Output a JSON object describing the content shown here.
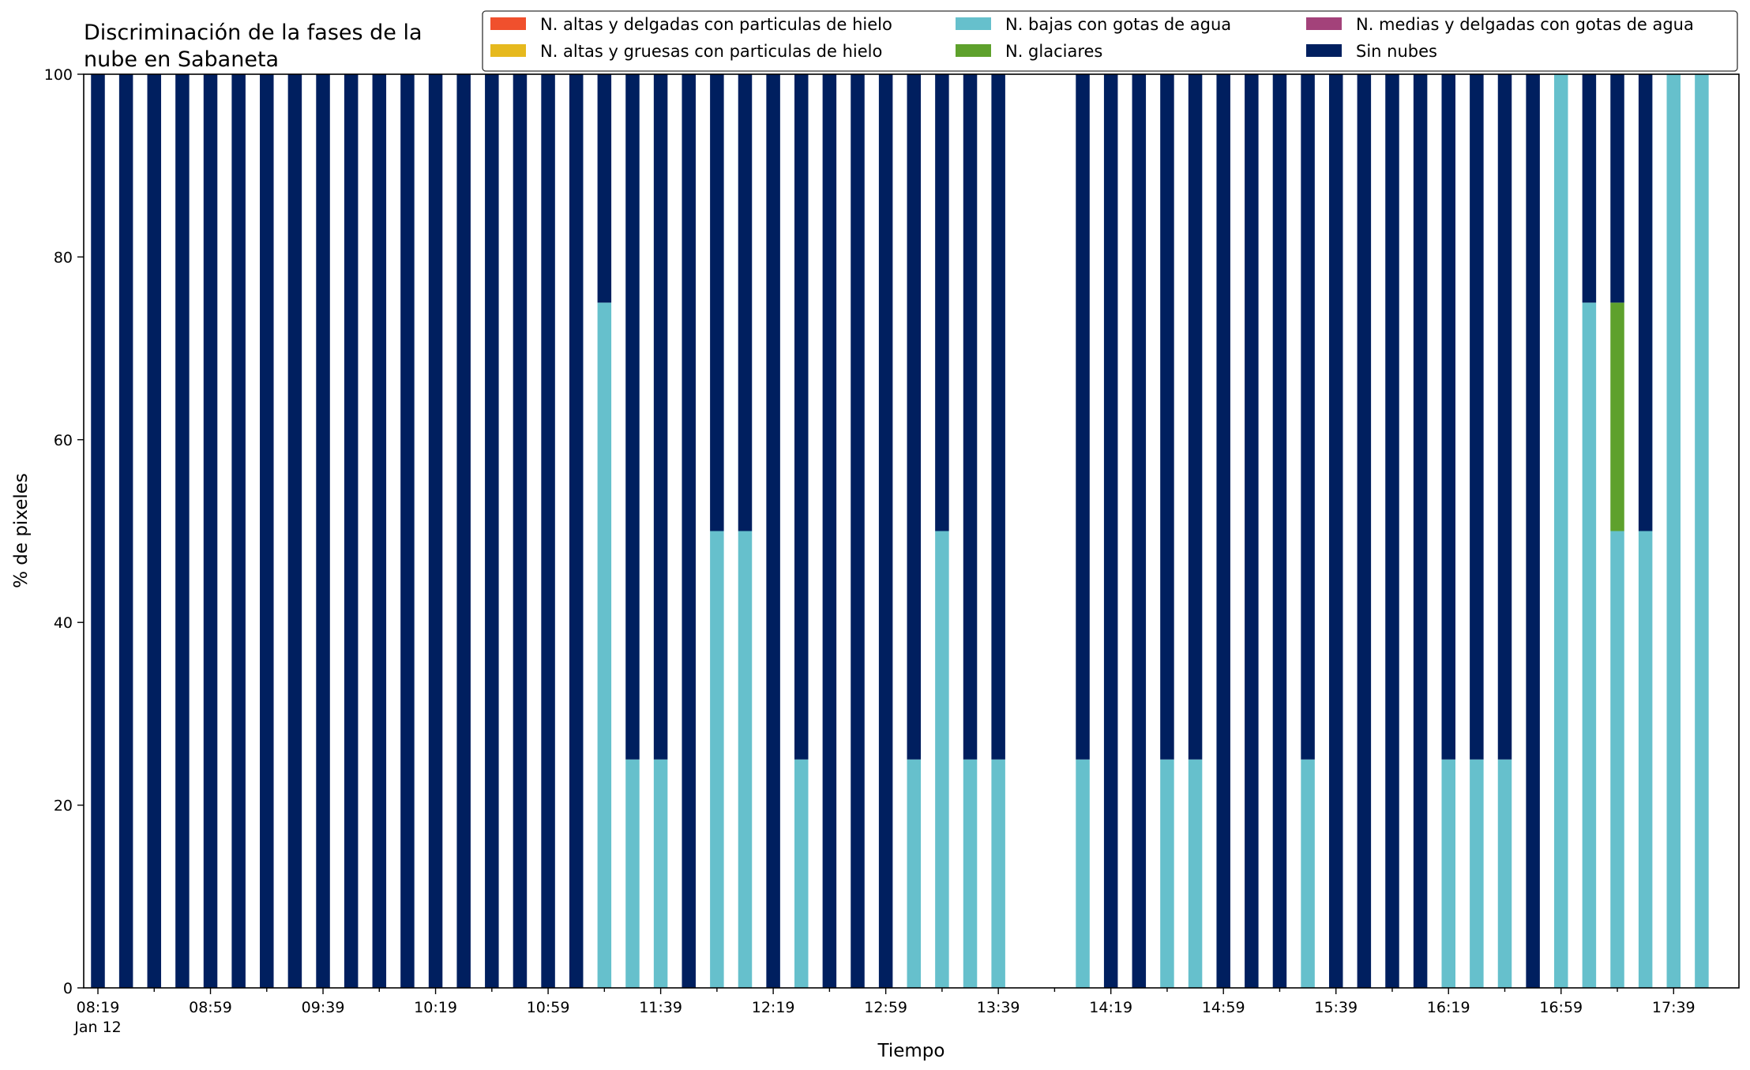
{
  "colors": {
    "hielo_delgadas": "#f0502d",
    "hielo_gruesas": "#e6b91e",
    "agua_bajas": "#66c0cc",
    "glaciares": "#5ea12c",
    "medias_agua": "#a3427a",
    "sin_nubes": "#001f5f"
  },
  "chart_data": {
    "type": "bar",
    "stacked": true,
    "title": "Discriminación de la fases de la\nnube en Sabaneta",
    "xlabel": "Tiempo",
    "ylabel": "% de pixeles",
    "ylim": [
      0,
      100
    ],
    "yticks": [
      0,
      20,
      40,
      60,
      80,
      100
    ],
    "grid": false,
    "legend_position": "top-right",
    "x_tick_labels": [
      {
        "time": "08:19",
        "date": "Jan 12"
      },
      {
        "time": "08:59"
      },
      {
        "time": "09:39"
      },
      {
        "time": "10:19"
      },
      {
        "time": "10:59"
      },
      {
        "time": "11:39"
      },
      {
        "time": "12:19"
      },
      {
        "time": "12:59"
      },
      {
        "time": "13:39"
      },
      {
        "time": "14:19"
      },
      {
        "time": "14:59"
      },
      {
        "time": "15:39"
      },
      {
        "time": "16:19"
      },
      {
        "time": "16:59"
      },
      {
        "time": "17:39"
      }
    ],
    "categories": [
      "08:19",
      "08:29",
      "08:39",
      "08:49",
      "08:59",
      "09:09",
      "09:19",
      "09:29",
      "09:39",
      "09:49",
      "09:59",
      "10:09",
      "10:19",
      "10:29",
      "10:39",
      "10:49",
      "10:59",
      "11:09",
      "11:19",
      "11:29",
      "11:39",
      "11:49",
      "11:59",
      "12:09",
      "12:19",
      "12:29",
      "12:39",
      "12:49",
      "12:59",
      "13:09",
      "13:19",
      "13:29",
      "13:39",
      "13:49",
      "13:59",
      "14:09",
      "14:19",
      "14:29",
      "14:39",
      "14:49",
      "14:59",
      "15:09",
      "15:19",
      "15:29",
      "15:39",
      "15:49",
      "15:59",
      "16:09",
      "16:19",
      "16:29",
      "16:39",
      "16:49",
      "16:59",
      "17:09",
      "17:19",
      "17:29",
      "17:39",
      "17:49"
    ],
    "series": [
      {
        "name": "N. altas y delgadas con particulas de hielo",
        "color_key": "hielo_delgadas",
        "values": [
          0,
          0,
          0,
          0,
          0,
          0,
          0,
          0,
          0,
          0,
          0,
          0,
          0,
          0,
          0,
          0,
          0,
          0,
          0,
          0,
          0,
          0,
          0,
          0,
          0,
          0,
          0,
          0,
          0,
          0,
          0,
          0,
          0,
          0,
          0,
          0,
          0,
          0,
          0,
          0,
          0,
          0,
          0,
          0,
          0,
          0,
          0,
          0,
          0,
          0,
          0,
          0,
          0,
          0,
          0,
          0,
          0,
          0
        ]
      },
      {
        "name": "N. altas y gruesas con particulas de hielo",
        "color_key": "hielo_gruesas",
        "values": [
          0,
          0,
          0,
          0,
          0,
          0,
          0,
          0,
          0,
          0,
          0,
          0,
          0,
          0,
          0,
          0,
          0,
          0,
          0,
          0,
          0,
          0,
          0,
          0,
          0,
          0,
          0,
          0,
          0,
          0,
          0,
          0,
          0,
          0,
          0,
          0,
          0,
          0,
          0,
          0,
          0,
          0,
          0,
          0,
          0,
          0,
          0,
          0,
          0,
          0,
          0,
          0,
          0,
          0,
          0,
          0,
          0,
          0
        ]
      },
      {
        "name": "N. bajas con gotas de agua",
        "color_key": "agua_bajas",
        "values": [
          0,
          0,
          0,
          0,
          0,
          0,
          0,
          0,
          0,
          0,
          0,
          0,
          0,
          0,
          0,
          0,
          0,
          0,
          75,
          25,
          25,
          0,
          50,
          50,
          0,
          25,
          0,
          0,
          0,
          25,
          50,
          25,
          25,
          0,
          0,
          25,
          0,
          0,
          25,
          25,
          0,
          0,
          0,
          25,
          0,
          0,
          0,
          0,
          25,
          25,
          25,
          0,
          100,
          75,
          50,
          50,
          100,
          100
        ]
      },
      {
        "name": "N. glaciares",
        "color_key": "glaciares",
        "values": [
          0,
          0,
          0,
          0,
          0,
          0,
          0,
          0,
          0,
          0,
          0,
          0,
          0,
          0,
          0,
          0,
          0,
          0,
          0,
          0,
          0,
          0,
          0,
          0,
          0,
          0,
          0,
          0,
          0,
          0,
          0,
          0,
          0,
          0,
          0,
          0,
          0,
          0,
          0,
          0,
          0,
          0,
          0,
          0,
          0,
          0,
          0,
          0,
          0,
          0,
          0,
          0,
          0,
          0,
          25,
          0,
          0,
          0
        ]
      },
      {
        "name": "N. medias y delgadas con gotas de agua",
        "color_key": "medias_agua",
        "values": [
          0,
          0,
          0,
          0,
          0,
          0,
          0,
          0,
          0,
          0,
          0,
          0,
          0,
          0,
          0,
          0,
          0,
          0,
          0,
          0,
          0,
          0,
          0,
          0,
          0,
          0,
          0,
          0,
          0,
          0,
          0,
          0,
          0,
          0,
          0,
          0,
          0,
          0,
          0,
          0,
          0,
          0,
          0,
          0,
          0,
          0,
          0,
          0,
          0,
          0,
          0,
          0,
          0,
          0,
          0,
          0,
          0,
          0
        ]
      },
      {
        "name": "Sin nubes",
        "color_key": "sin_nubes",
        "values": [
          100,
          100,
          100,
          100,
          100,
          100,
          100,
          100,
          100,
          100,
          100,
          100,
          100,
          100,
          100,
          100,
          100,
          100,
          25,
          75,
          75,
          100,
          50,
          50,
          100,
          75,
          100,
          100,
          100,
          75,
          50,
          75,
          75,
          0,
          0,
          75,
          100,
          100,
          75,
          75,
          100,
          100,
          100,
          75,
          100,
          100,
          100,
          100,
          75,
          75,
          75,
          100,
          0,
          25,
          25,
          50,
          0,
          0
        ]
      }
    ]
  }
}
